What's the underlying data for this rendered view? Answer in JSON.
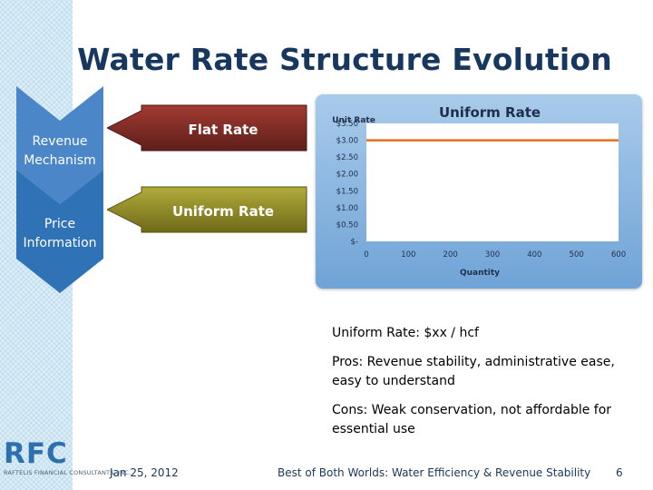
{
  "slide": {
    "title": "Water Rate Structure Evolution",
    "slide_number": "6"
  },
  "chevrons": [
    {
      "label": "Revenue Mechanism",
      "color": "#4a86c8"
    },
    {
      "label": "Price Information",
      "color": "#2f73b6"
    }
  ],
  "arrows": [
    {
      "label": "Flat Rate",
      "color": "#7b2d26",
      "text_color": "#ffffff"
    },
    {
      "label": "Uniform Rate",
      "color": "#8b8625",
      "text_color": "#ffffff"
    }
  ],
  "chart_data": {
    "type": "line",
    "title": "Uniform Rate",
    "xlabel": "Quantity",
    "ylabel": "Unit Rate",
    "x_ticks": [
      "0",
      "100",
      "200",
      "300",
      "400",
      "500",
      "600"
    ],
    "y_ticks": [
      "$-",
      "$0.50",
      "$1.00",
      "$1.50",
      "$2.00",
      "$2.50",
      "$3.00",
      "$3.50"
    ],
    "xlim": [
      0,
      600
    ],
    "ylim": [
      0,
      3.5
    ],
    "series": [
      {
        "name": "Uniform Rate",
        "x": [
          0,
          600
        ],
        "y": [
          3.0,
          3.0
        ],
        "color": "#e46c1f"
      }
    ]
  },
  "body": {
    "definition": "Uniform Rate: $xx / hcf",
    "pros": "Pros: Revenue stability, administrative ease, easy to understand",
    "cons": "Cons: Weak conservation,  not affordable for essential use"
  },
  "footer": {
    "date": "Jan 25, 2012",
    "caption": "Best of Both Worlds: Water Efficiency & Revenue Stability"
  },
  "logo": {
    "letters": "RFC",
    "subtitle": "RAFTELIS FINANCIAL CONSULTANTS, INC."
  }
}
